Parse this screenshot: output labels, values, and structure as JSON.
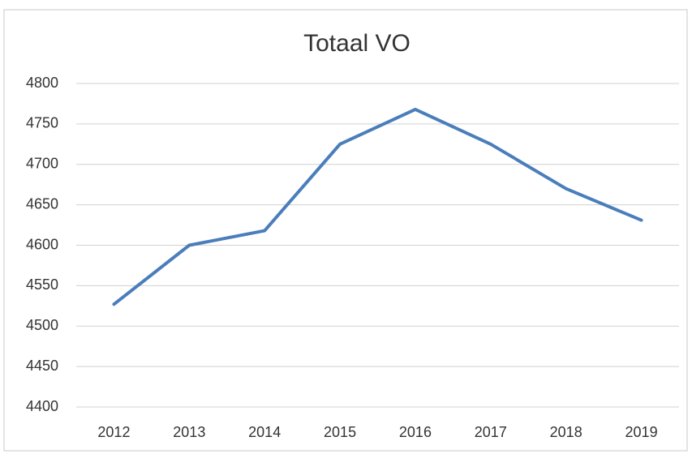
{
  "chart_data": {
    "type": "line",
    "title": "Totaal VO",
    "categories": [
      "2012",
      "2013",
      "2014",
      "2015",
      "2016",
      "2017",
      "2018",
      "2019"
    ],
    "series": [
      {
        "color": "#4a7ebb",
        "values": [
          4527,
          4600,
          4618,
          4725,
          4768,
          4725,
          4670,
          4631
        ]
      }
    ],
    "ylim": [
      4400,
      4800
    ],
    "yticks": [
      4400,
      4450,
      4500,
      4550,
      4600,
      4650,
      4700,
      4750,
      4800
    ],
    "grid": true
  }
}
